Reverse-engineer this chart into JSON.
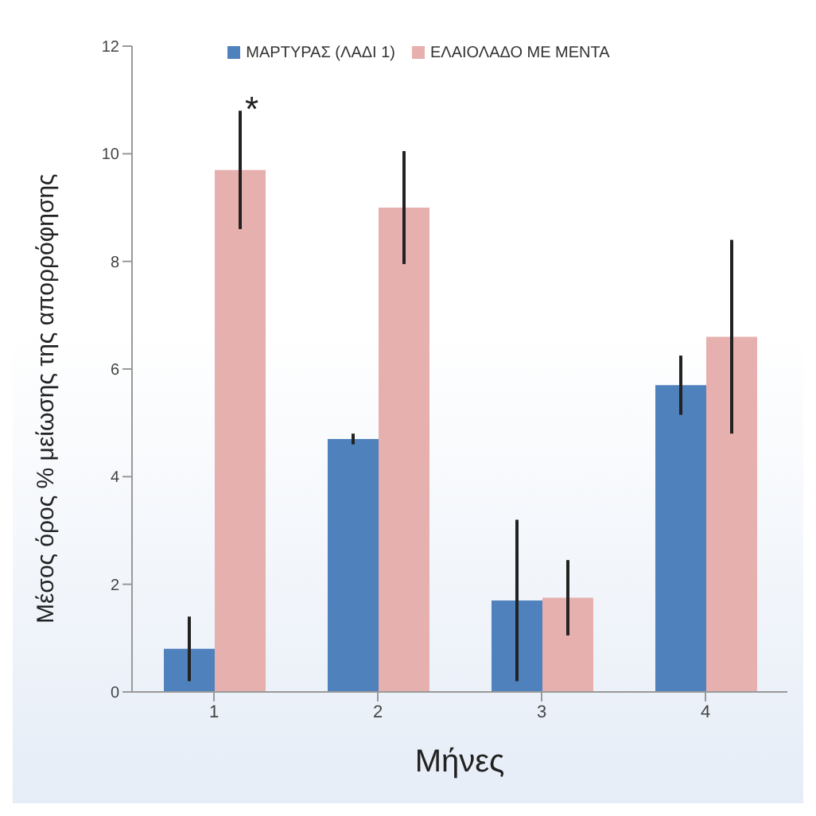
{
  "chart_data": {
    "type": "bar",
    "xlabel": "Μήνες",
    "ylabel": "Μέσος όρος % μείωσης της απορρόφησης",
    "categories": [
      "1",
      "2",
      "3",
      "4"
    ],
    "series": [
      {
        "name": "ΜΑΡΤΥΡΑΣ (ΛΑΔΙ 1)",
        "color": "#4f81bd",
        "values": [
          0.8,
          4.7,
          1.7,
          5.7
        ],
        "errors": [
          0.6,
          0.1,
          1.5,
          0.55
        ]
      },
      {
        "name": "ΕΛΑΙΟΛΑΔΟ ΜΕ ΜΕΝΤΑ",
        "color": "#e6b0ae",
        "values": [
          9.7,
          9.0,
          1.75,
          6.6
        ],
        "errors": [
          1.1,
          1.05,
          0.7,
          1.8
        ]
      }
    ],
    "ylim": [
      0,
      12
    ],
    "yticks": [
      0,
      2,
      4,
      6,
      8,
      10,
      12
    ],
    "grid": false,
    "legend": "top",
    "annotations": [
      "*"
    ]
  }
}
